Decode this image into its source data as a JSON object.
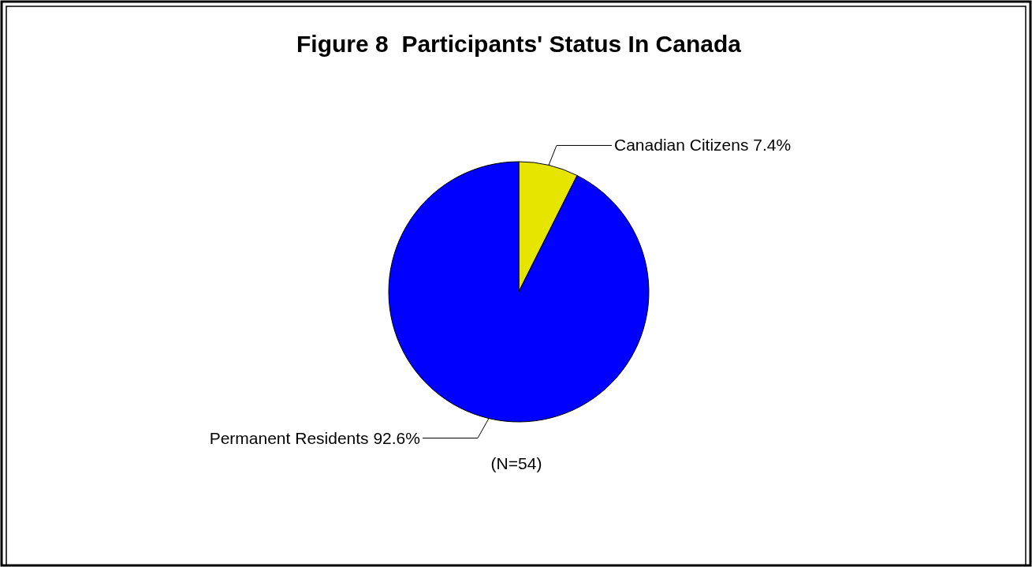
{
  "chart_data": {
    "type": "pie",
    "title": "Figure 8  Participants' Status In Canada",
    "categories": [
      "Canadian Citizens",
      "Permanent Residents"
    ],
    "values": [
      7.4,
      92.6
    ],
    "value_labels": [
      "7.4%",
      "92.6%"
    ],
    "colors": [
      "#e5e500",
      "#0000ff"
    ],
    "annotations": [
      "(N=54)"
    ]
  }
}
